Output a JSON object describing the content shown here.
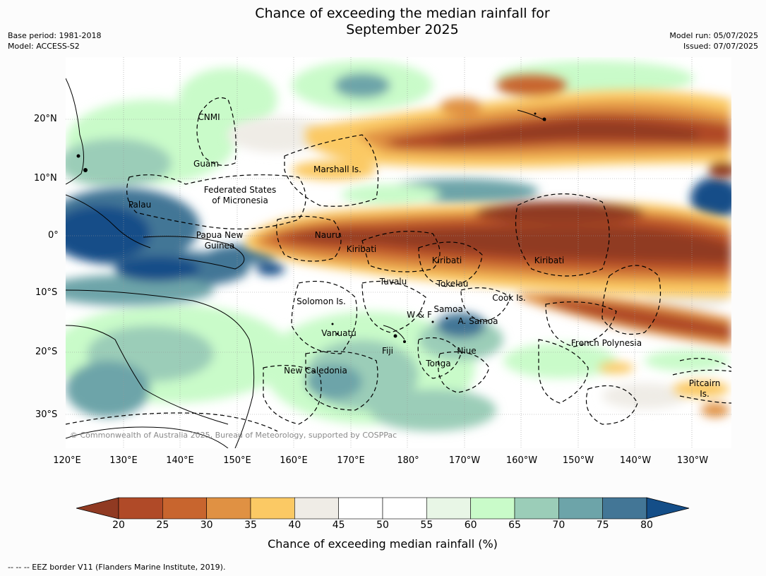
{
  "title_line1": "Chance of exceeding the median rainfall for",
  "title_line2": "September 2025",
  "meta_left": [
    "Base period: 1981-2018",
    "Model: ACCESS-S2"
  ],
  "meta_right": [
    "Model run: 05/07/2025",
    "Issued: 07/07/2025"
  ],
  "lat_labels": [
    "20°N",
    "10°N",
    "0°",
    "10°S",
    "20°S",
    "30°S"
  ],
  "lon_labels": [
    "120°E",
    "130°E",
    "140°E",
    "150°E",
    "160°E",
    "170°E",
    "180°",
    "170°W",
    "160°W",
    "150°W",
    "140°W",
    "130°W"
  ],
  "places": {
    "cnmi": "CNMI",
    "guam": "Guam",
    "marshall": "Marshall Is.",
    "fsm1": "Federated States",
    "fsm2": "of Micronesia",
    "palau": "Palau",
    "png1": "Papua New",
    "png2": "Guinea",
    "nauru": "Nauru",
    "kiribati_w": "Kiribati",
    "kiribati_c": "Kiribati",
    "kiribati_e": "Kiribati",
    "tuvalu": "Tuvalu",
    "tokelau": "Tokelau",
    "cook": "Cook Is.",
    "solomon": "Solomon Is.",
    "samoa": "Samoa",
    "wf": "W & F",
    "asamoa": "A. Samoa",
    "vanuatu": "Vanuatu",
    "fiji": "Fiji",
    "niue": "Niue",
    "tonga": "Tonga",
    "frenchpoly": "French Polynesia",
    "newcal": "New Caledonia",
    "pitcairn1": "Pitcairn",
    "pitcairn2": "Is."
  },
  "copyright": "© Commonwealth of Australia 2025, Bureau of Meteorology, supported by COSPPac",
  "colorbar": {
    "ticks": [
      "20",
      "25",
      "30",
      "35",
      "40",
      "45",
      "50",
      "55",
      "60",
      "65",
      "70",
      "75",
      "80"
    ],
    "colors": [
      "#b04a28",
      "#c8652e",
      "#e09143",
      "#fbc964",
      "#efece6",
      "#ffffff",
      "#ffffff",
      "#e8f6e6",
      "#c9fbc9",
      "#9bcdb8",
      "#6da4a9",
      "#437696"
    ],
    "low_color": "#903a22",
    "high_color": "#144e88",
    "label": "Chance of exceeding median rainfall (%)"
  },
  "footnote": "--  --  -- EEZ border V11 (Flanders Marine Institute, 2019)."
}
